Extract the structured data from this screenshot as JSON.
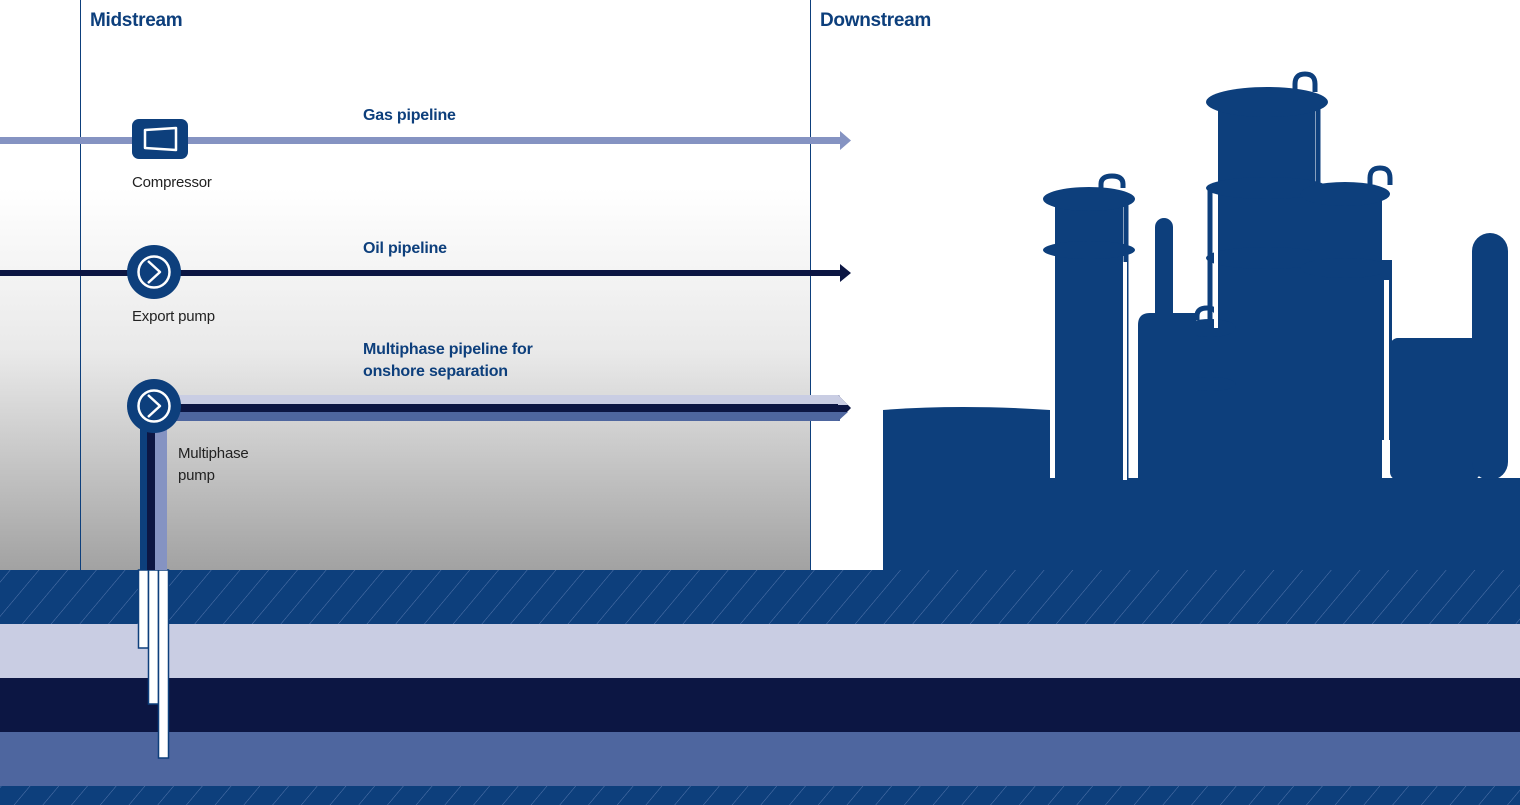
{
  "sections": {
    "midstream": "Midstream",
    "downstream": "Downstream"
  },
  "pipelines": {
    "gas": "Gas pipeline",
    "oil": "Oil pipeline",
    "multiphase_line1": "Multiphase pipeline for",
    "multiphase_line2": "onshore separation"
  },
  "equipment": {
    "compressor": "Compressor",
    "export_pump": "Export pump",
    "multiphase_pump_line1": "Multiphase",
    "multiphase_pump_line2": "pump"
  },
  "colors": {
    "brand_blue": "#0d3f7c",
    "gas_line": "#8593c2",
    "oil_line": "#0c1643",
    "layer_light": "#c9cde3",
    "layer_dark": "#0c1643",
    "layer_mid": "#4e669f"
  },
  "icons": {
    "compressor": "compressor-icon",
    "export_pump": "pump-icon",
    "multiphase_pump": "pump-icon",
    "refinery": "refinery-silhouette"
  }
}
